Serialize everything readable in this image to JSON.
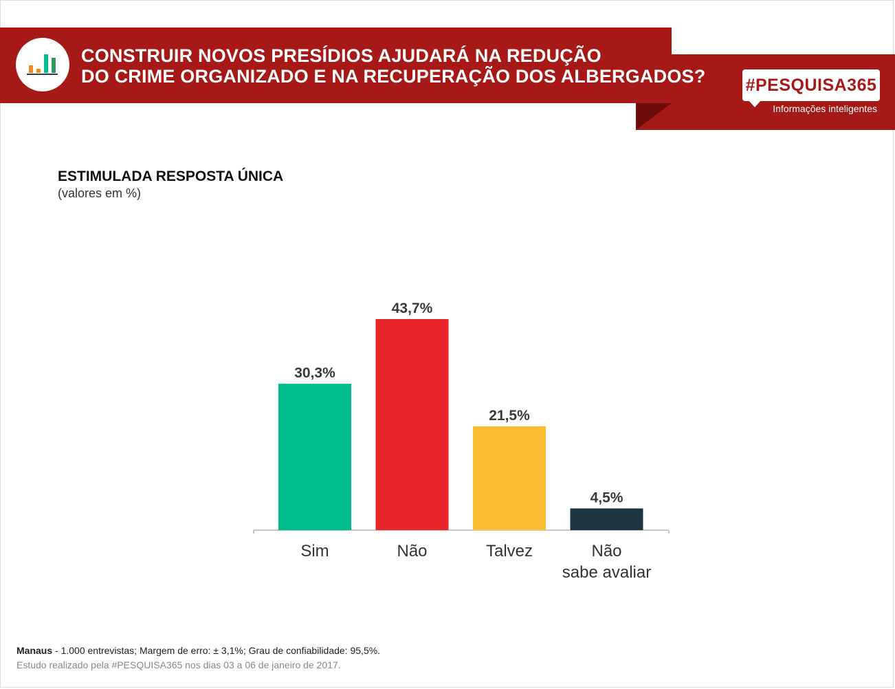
{
  "header": {
    "title_line1": "CONSTRUIR NOVOS PRESÍDIOS AJUDARÁ NA REDUÇÃO",
    "title_line2": "DO CRIME ORGANIZADO E NA RECUPERAÇÃO DOS ALBERGADOS?",
    "brand": "#PESQUISA365",
    "tagline": "Informações inteligentes"
  },
  "subhead": {
    "title": "ESTIMULADA RESPOSTA ÚNICA",
    "note": "(valores em %)"
  },
  "chart_data": {
    "type": "bar",
    "categories": [
      "Sim",
      "Não",
      "Talvez",
      "Não sabe avaliar"
    ],
    "category_lines": [
      [
        "Sim"
      ],
      [
        "Não"
      ],
      [
        "Talvez"
      ],
      [
        "Não",
        "sabe avaliar"
      ]
    ],
    "values": [
      30.3,
      43.7,
      21.5,
      4.5
    ],
    "value_labels": [
      "30,3%",
      "43,7%",
      "21,5%",
      "4,5%"
    ],
    "colors": [
      "#00be8c",
      "#e8262a",
      "#fbbc32",
      "#1f3544"
    ],
    "ylim": [
      0,
      43.7
    ],
    "grid": false,
    "legend": "none"
  },
  "footer": {
    "city": "Manaus",
    "details": " - 1.000 entrevistas; Margem de erro: ± 3,1%; Grau de confiabilidade: 95,5%.",
    "study": "Estudo realizado pela #PESQUISA365 nos dias 03 a 06 de janeiro de 2017."
  },
  "icons": {
    "header_icon": "bar-chart-icon"
  }
}
